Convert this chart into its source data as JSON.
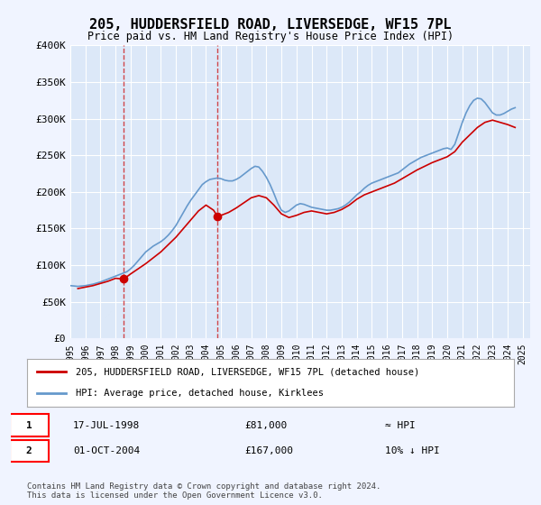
{
  "title": "205, HUDDERSFIELD ROAD, LIVERSEDGE, WF15 7PL",
  "subtitle": "Price paid vs. HM Land Registry's House Price Index (HPI)",
  "ylabel": "",
  "ylim": [
    0,
    400000
  ],
  "yticks": [
    0,
    50000,
    100000,
    150000,
    200000,
    250000,
    300000,
    350000,
    400000
  ],
  "ytick_labels": [
    "£0",
    "£50K",
    "£100K",
    "£150K",
    "£200K",
    "£250K",
    "£300K",
    "£350K",
    "£400K"
  ],
  "xlim_start": 1995.0,
  "xlim_end": 2025.5,
  "bg_color": "#f0f4ff",
  "plot_bg": "#dce8f8",
  "grid_color": "#ffffff",
  "red_line_color": "#cc0000",
  "blue_line_color": "#6699cc",
  "transaction1_x": 1998.54,
  "transaction1_y": 81000,
  "transaction1_label": "1",
  "transaction2_x": 2004.75,
  "transaction2_y": 167000,
  "transaction2_label": "2",
  "legend_line1": "205, HUDDERSFIELD ROAD, LIVERSEDGE, WF15 7PL (detached house)",
  "legend_line2": "HPI: Average price, detached house, Kirklees",
  "table_row1_num": "1",
  "table_row1_date": "17-JUL-1998",
  "table_row1_price": "£81,000",
  "table_row1_hpi": "≈ HPI",
  "table_row2_num": "2",
  "table_row2_date": "01-OCT-2004",
  "table_row2_price": "£167,000",
  "table_row2_hpi": "10% ↓ HPI",
  "footer": "Contains HM Land Registry data © Crown copyright and database right 2024.\nThis data is licensed under the Open Government Licence v3.0.",
  "hpi_data_x": [
    1995.0,
    1995.25,
    1995.5,
    1995.75,
    1996.0,
    1996.25,
    1996.5,
    1996.75,
    1997.0,
    1997.25,
    1997.5,
    1997.75,
    1998.0,
    1998.25,
    1998.5,
    1998.75,
    1999.0,
    1999.25,
    1999.5,
    1999.75,
    2000.0,
    2000.25,
    2000.5,
    2000.75,
    2001.0,
    2001.25,
    2001.5,
    2001.75,
    2002.0,
    2002.25,
    2002.5,
    2002.75,
    2003.0,
    2003.25,
    2003.5,
    2003.75,
    2004.0,
    2004.25,
    2004.5,
    2004.75,
    2005.0,
    2005.25,
    2005.5,
    2005.75,
    2006.0,
    2006.25,
    2006.5,
    2006.75,
    2007.0,
    2007.25,
    2007.5,
    2007.75,
    2008.0,
    2008.25,
    2008.5,
    2008.75,
    2009.0,
    2009.25,
    2009.5,
    2009.75,
    2010.0,
    2010.25,
    2010.5,
    2010.75,
    2011.0,
    2011.25,
    2011.5,
    2011.75,
    2012.0,
    2012.25,
    2012.5,
    2012.75,
    2013.0,
    2013.25,
    2013.5,
    2013.75,
    2014.0,
    2014.25,
    2014.5,
    2014.75,
    2015.0,
    2015.25,
    2015.5,
    2015.75,
    2016.0,
    2016.25,
    2016.5,
    2016.75,
    2017.0,
    2017.25,
    2017.5,
    2017.75,
    2018.0,
    2018.25,
    2018.5,
    2018.75,
    2019.0,
    2019.25,
    2019.5,
    2019.75,
    2020.0,
    2020.25,
    2020.5,
    2020.75,
    2021.0,
    2021.25,
    2021.5,
    2021.75,
    2022.0,
    2022.25,
    2022.5,
    2022.75,
    2023.0,
    2023.25,
    2023.5,
    2023.75,
    2024.0,
    2024.25,
    2024.5
  ],
  "hpi_data_y": [
    72000,
    71500,
    71000,
    71500,
    72000,
    73000,
    74000,
    75500,
    77000,
    79000,
    81000,
    83000,
    85000,
    87000,
    89000,
    91000,
    95000,
    100000,
    106000,
    112000,
    118000,
    122000,
    126000,
    129000,
    132000,
    136000,
    141000,
    147000,
    154000,
    163000,
    172000,
    181000,
    189000,
    196000,
    203000,
    210000,
    214000,
    217000,
    218000,
    219000,
    218000,
    216000,
    215000,
    215000,
    217000,
    220000,
    224000,
    228000,
    232000,
    235000,
    234000,
    228000,
    220000,
    210000,
    198000,
    185000,
    175000,
    172000,
    174000,
    178000,
    182000,
    184000,
    183000,
    181000,
    179000,
    178000,
    177000,
    176000,
    175000,
    175000,
    176000,
    177000,
    179000,
    182000,
    186000,
    191000,
    196000,
    200000,
    205000,
    209000,
    212000,
    214000,
    216000,
    218000,
    220000,
    222000,
    224000,
    226000,
    230000,
    234000,
    238000,
    241000,
    244000,
    247000,
    249000,
    251000,
    253000,
    255000,
    257000,
    259000,
    260000,
    258000,
    265000,
    280000,
    295000,
    308000,
    318000,
    325000,
    328000,
    327000,
    322000,
    315000,
    308000,
    305000,
    305000,
    307000,
    310000,
    313000,
    315000
  ],
  "price_data_x": [
    1995.5,
    1996.0,
    1996.5,
    1997.0,
    1997.5,
    1998.0,
    1998.54,
    1999.0,
    1999.5,
    2000.0,
    2000.5,
    2001.0,
    2001.5,
    2002.0,
    2002.5,
    2003.0,
    2003.5,
    2004.0,
    2004.5,
    2004.75,
    2005.0,
    2005.5,
    2006.0,
    2006.5,
    2007.0,
    2007.5,
    2008.0,
    2008.5,
    2009.0,
    2009.5,
    2010.0,
    2010.5,
    2011.0,
    2011.5,
    2012.0,
    2012.5,
    2013.0,
    2013.5,
    2014.0,
    2014.5,
    2015.0,
    2015.5,
    2016.0,
    2016.5,
    2017.0,
    2017.5,
    2018.0,
    2018.5,
    2019.0,
    2019.5,
    2020.0,
    2020.5,
    2021.0,
    2021.5,
    2022.0,
    2022.5,
    2023.0,
    2023.5,
    2024.0,
    2024.5
  ],
  "price_data_y": [
    68000,
    70000,
    72000,
    75000,
    78000,
    82000,
    81000,
    88000,
    95000,
    102000,
    110000,
    118000,
    128000,
    138000,
    150000,
    162000,
    174000,
    182000,
    175000,
    167000,
    168000,
    172000,
    178000,
    185000,
    192000,
    195000,
    192000,
    182000,
    170000,
    165000,
    168000,
    172000,
    174000,
    172000,
    170000,
    172000,
    176000,
    182000,
    190000,
    196000,
    200000,
    204000,
    208000,
    212000,
    218000,
    224000,
    230000,
    235000,
    240000,
    244000,
    248000,
    255000,
    268000,
    278000,
    288000,
    295000,
    298000,
    295000,
    292000,
    288000
  ]
}
